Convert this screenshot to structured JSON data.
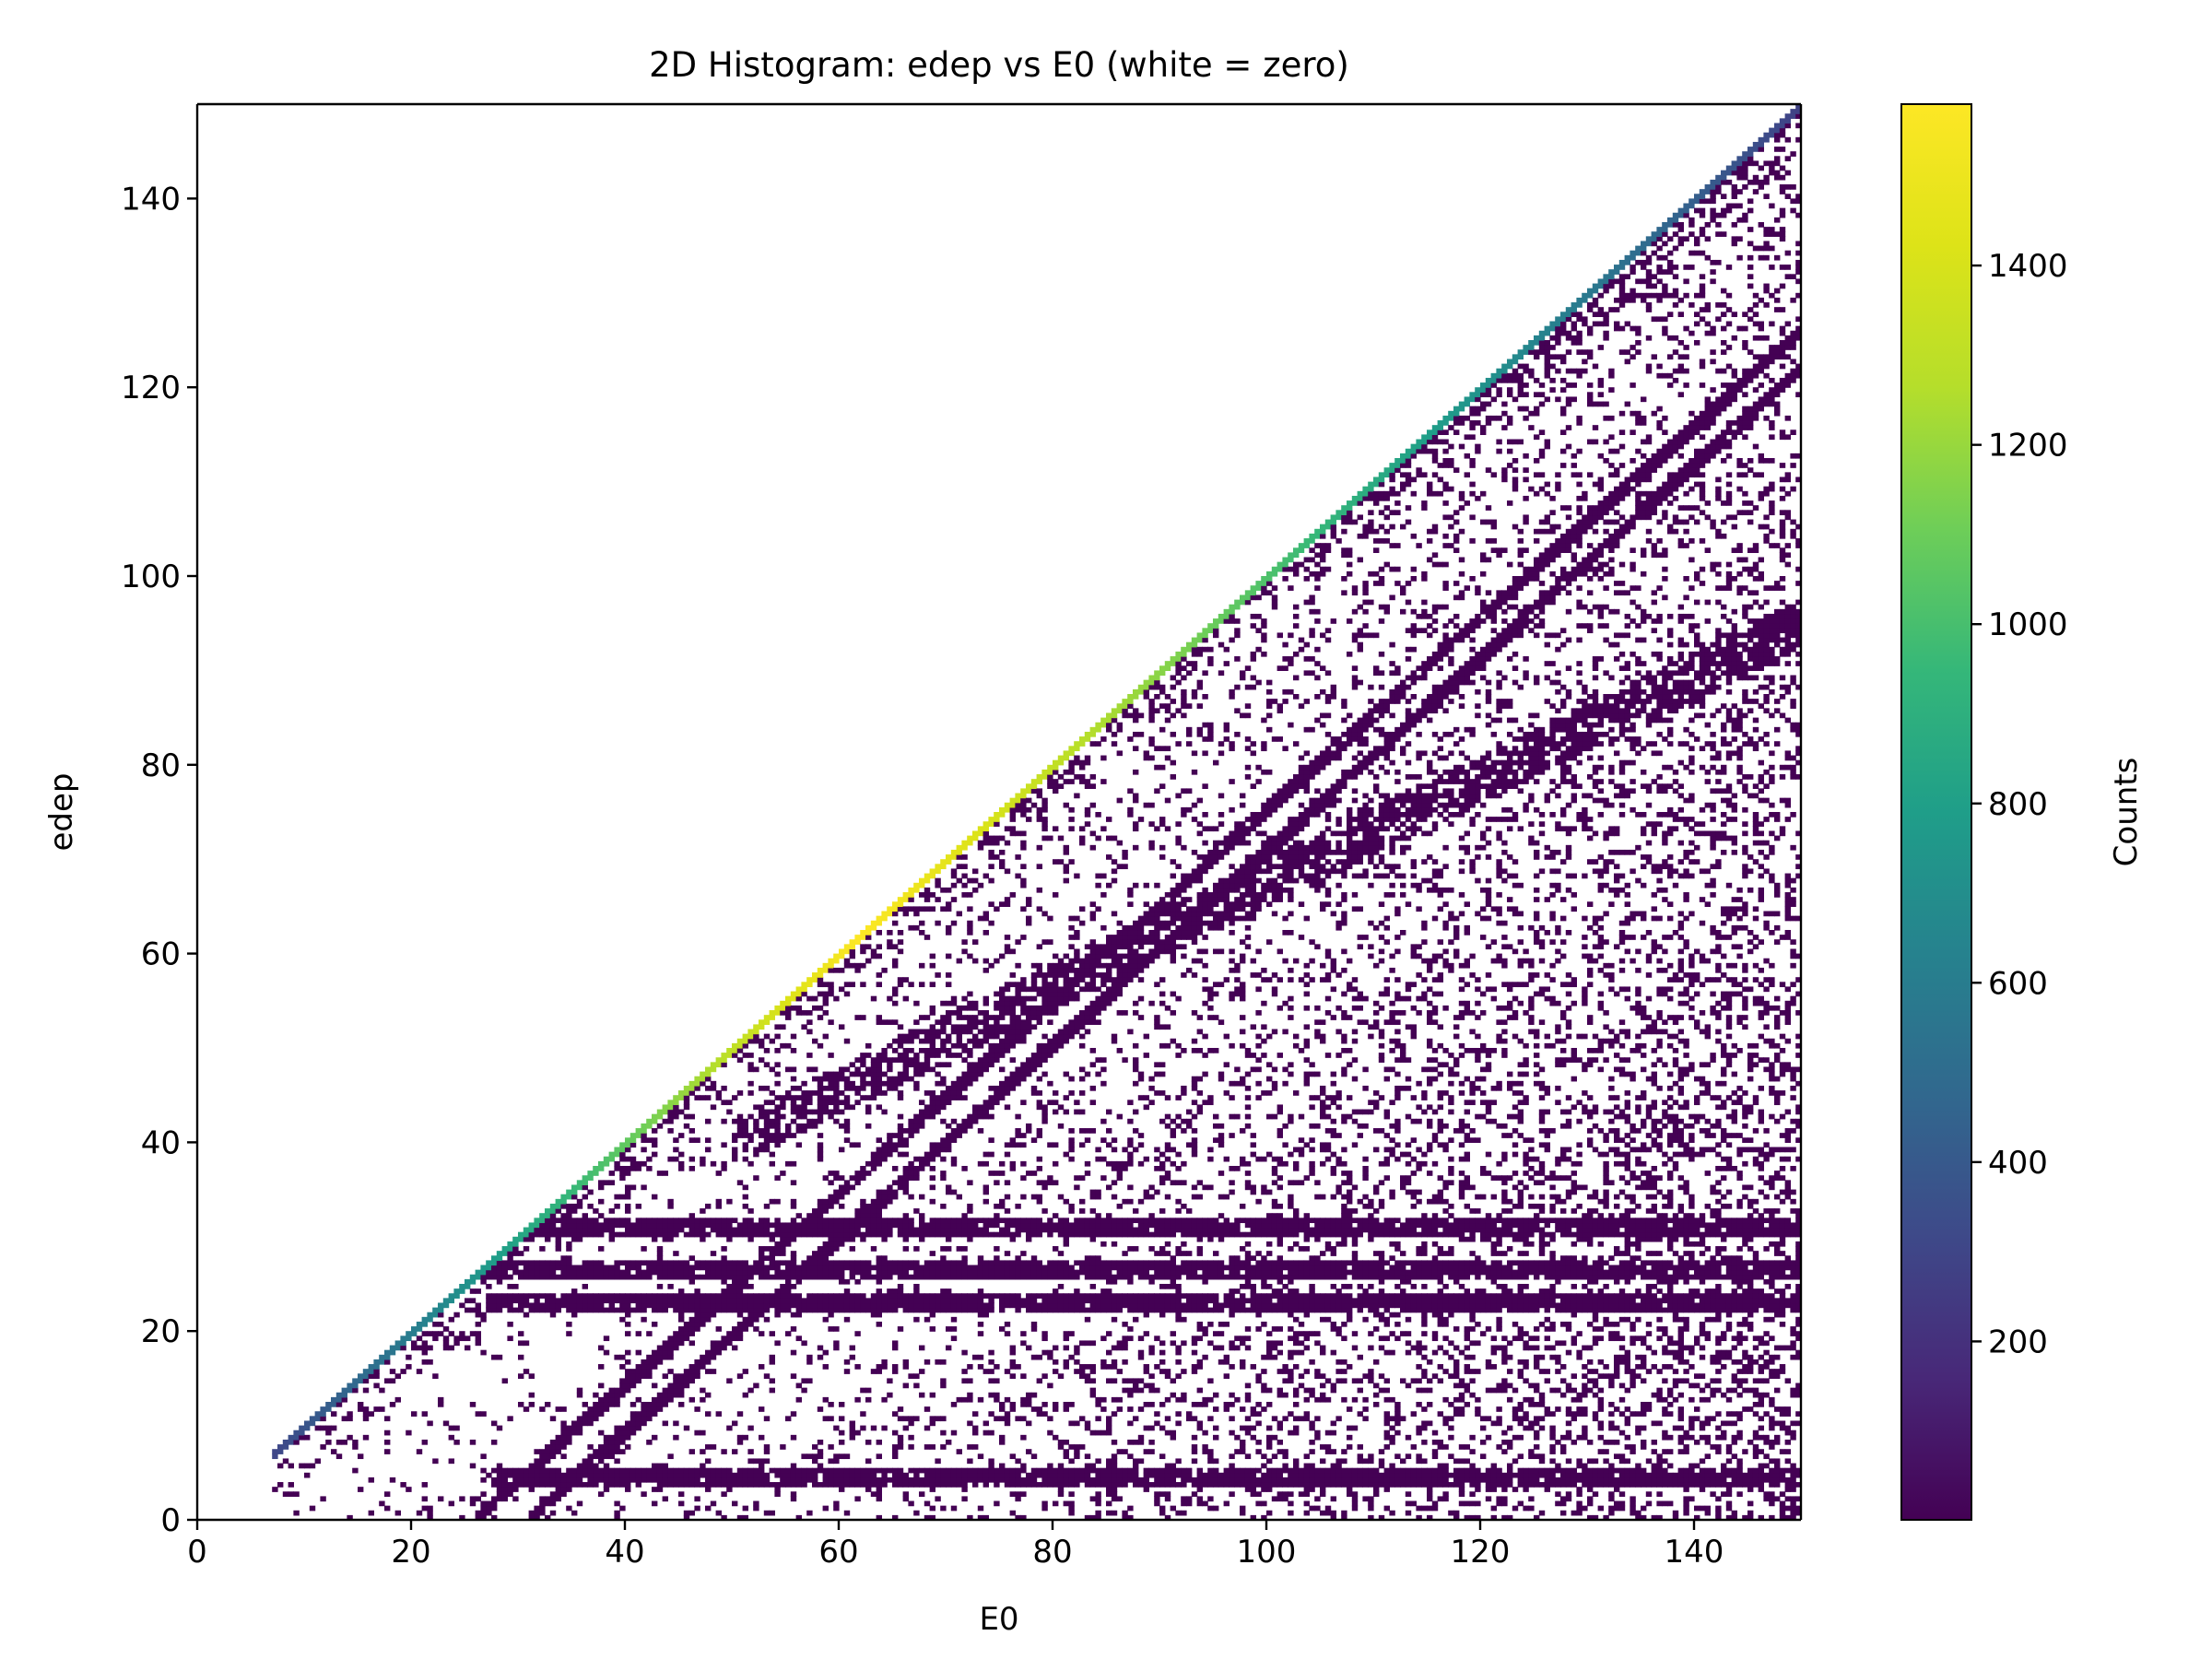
{
  "chart_data": {
    "type": "heatmap",
    "title": "2D Histogram: edep vs E0 (white = zero)",
    "xlabel": "E0",
    "ylabel": "edep",
    "xlim": [
      0,
      150
    ],
    "ylim": [
      0,
      150
    ],
    "x_ticks": [
      "0",
      "20",
      "40",
      "60",
      "80",
      "100",
      "120",
      "140"
    ],
    "y_ticks": [
      "0",
      "20",
      "40",
      "60",
      "80",
      "100",
      "120",
      "140"
    ],
    "colorbar": {
      "label": "Counts",
      "range": [
        1,
        1580
      ],
      "ticks": [
        "200",
        "400",
        "600",
        "800",
        "1000",
        "1200",
        "1400"
      ],
      "colormap": "viridis"
    },
    "zero_color": "#ffffff",
    "features": {
      "diagonal_peak": {
        "description": "full-energy peak along edep = E0",
        "counts_from": 300,
        "counts_to": 1580,
        "e0_range": [
          7,
          150
        ]
      },
      "horizontal_bands_edep": [
        23,
        26.5,
        31,
        4.5
      ],
      "diagonal_bands": [
        {
          "from": [
            26,
            0
          ],
          "to": [
            150,
            126
          ]
        },
        {
          "from": [
            31,
            0
          ],
          "to": [
            150,
            122
          ]
        }
      ],
      "broad_band": {
        "from": [
          50,
          40
        ],
        "to": [
          150,
          95
        ]
      },
      "low_count_level": 1
    }
  },
  "colors": {
    "viridis_low": "#440154",
    "viridis_mid": "#21918c",
    "viridis_high": "#fde725"
  }
}
